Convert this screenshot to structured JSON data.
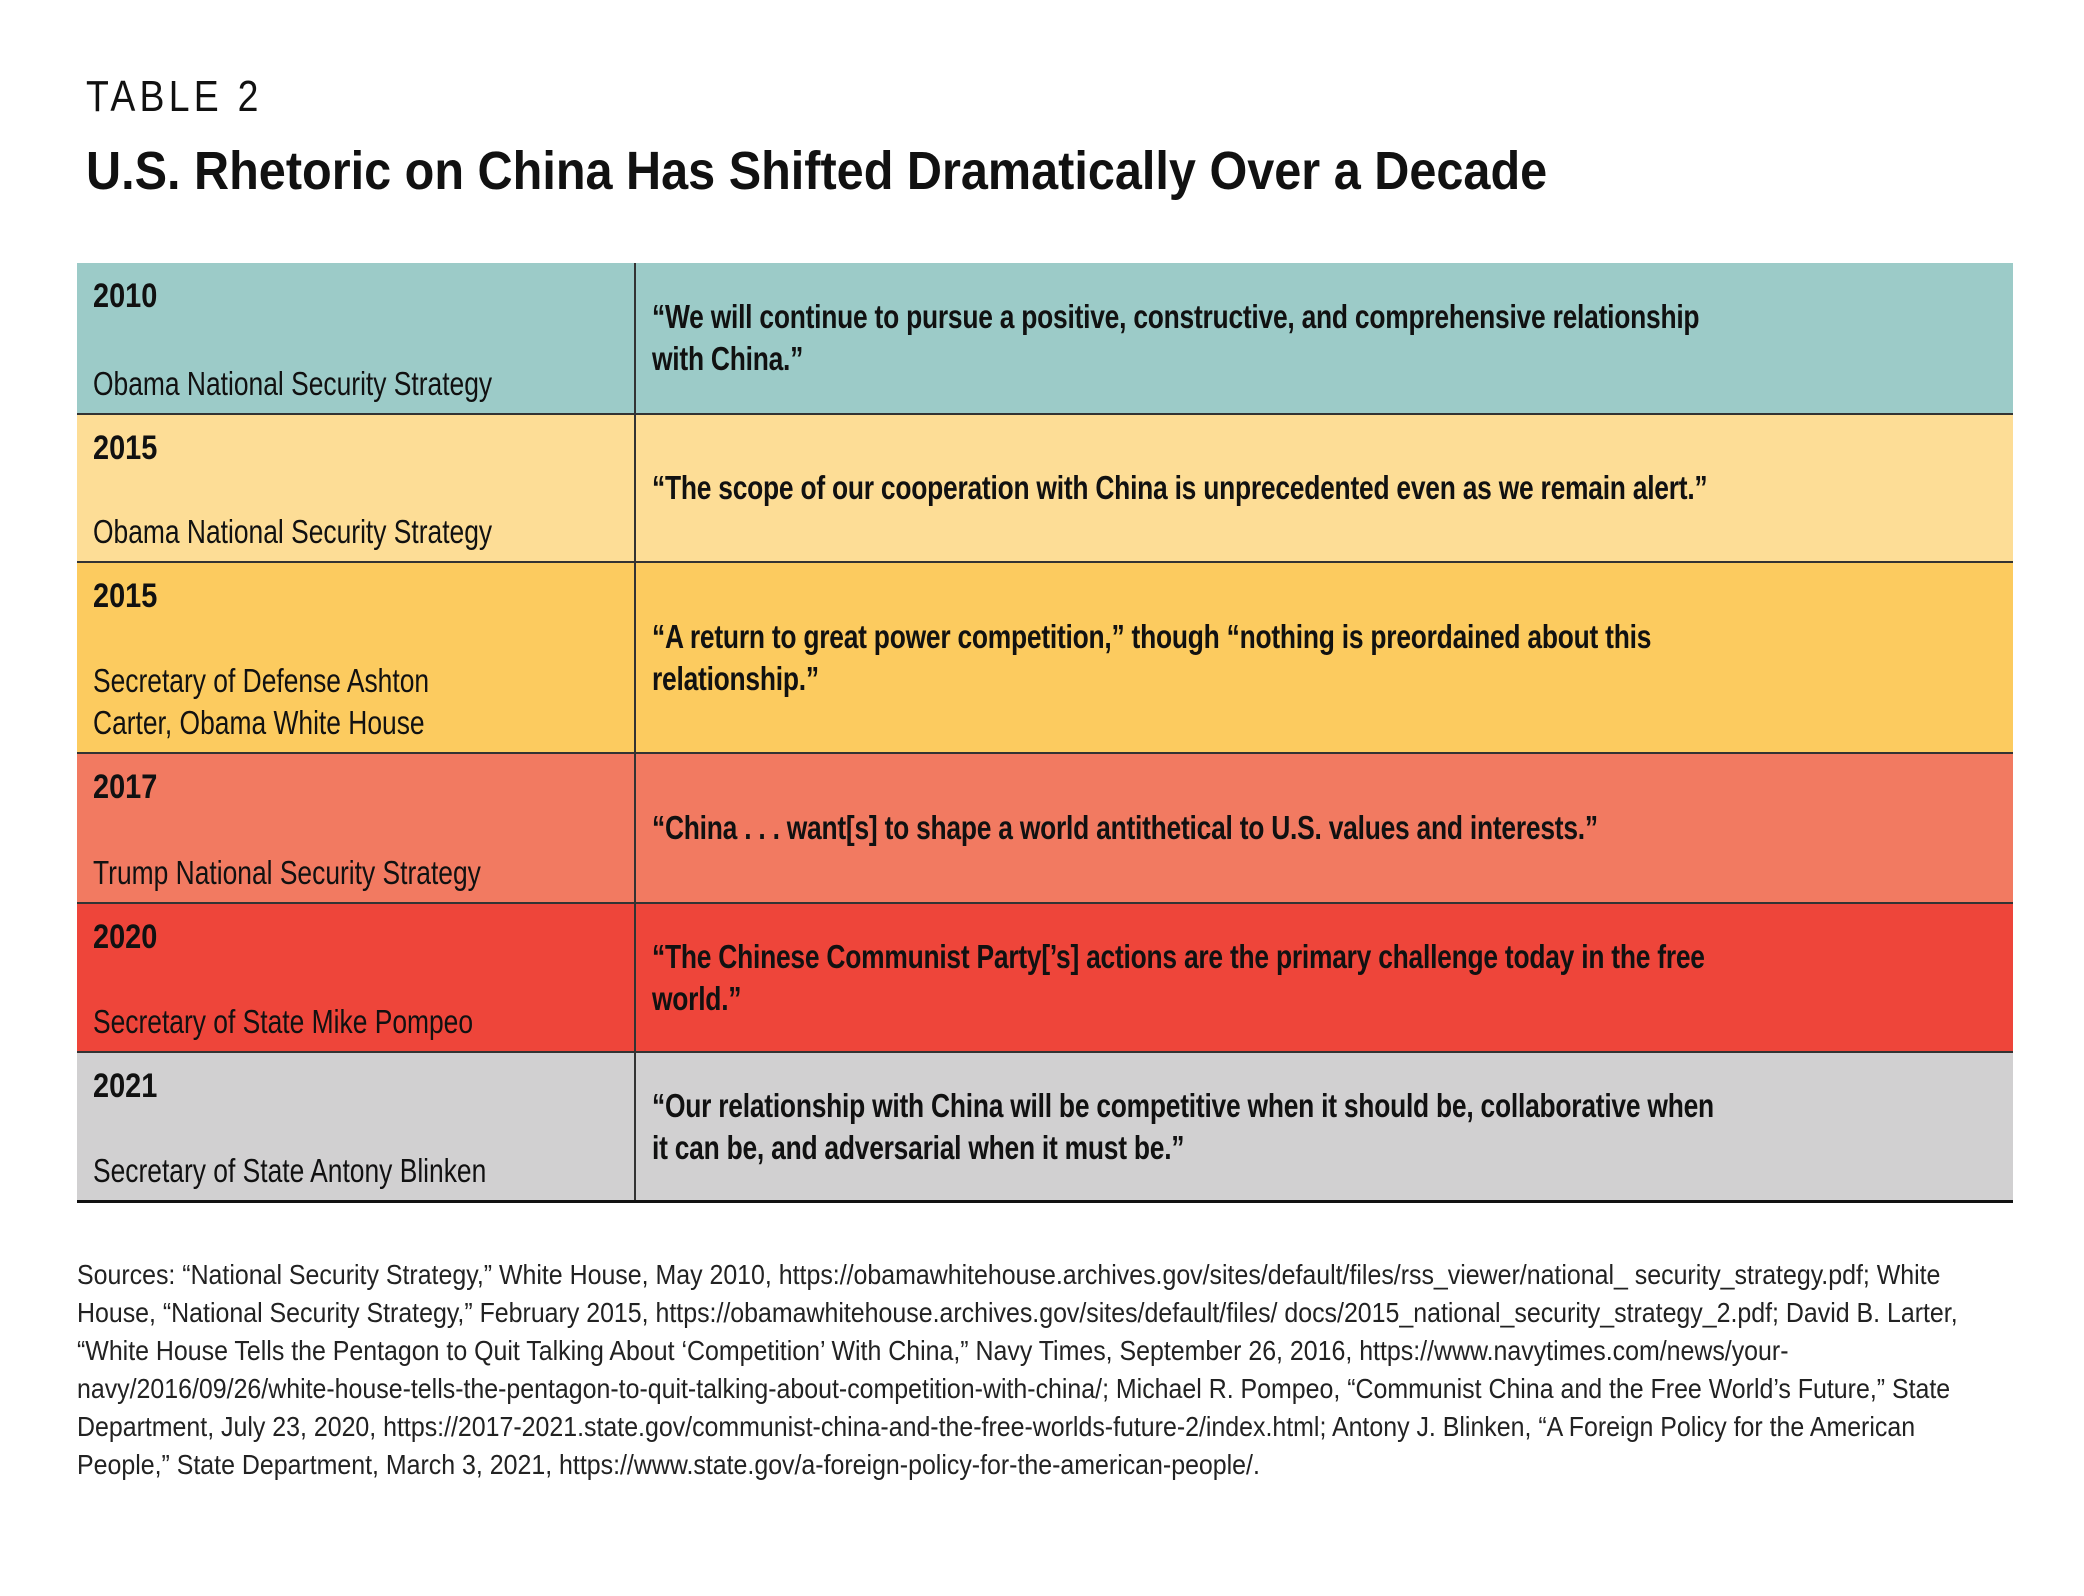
{
  "header": {
    "kicker": "TABLE 2",
    "title": "U.S. Rhetoric on China Has Shifted Dramatically Over a Decade"
  },
  "rows": [
    {
      "year": "2010",
      "source": "Obama National Security Strategy",
      "quote": "“We will continue to pursue a positive, constructive, and comprehensive relationship with China.”",
      "color": "#9ccbc8"
    },
    {
      "year": "2015",
      "source": "Obama National Security Strategy",
      "quote": "“The scope of our cooperation with China is unprecedented even as we remain alert.”",
      "color": "#fddd96"
    },
    {
      "year": "2015",
      "source": "Secretary of Defense Ashton Carter, Obama White House",
      "quote": "“A return to great power competition,” though “nothing is preordained about this relationship.”",
      "color": "#fccb5f"
    },
    {
      "year": "2017",
      "source": "Trump National Security Strategy",
      "quote": "“China . . . want[s] to shape a world antithetical to U.S. values and interests.”",
      "color": "#f27a61"
    },
    {
      "year": "2020",
      "source": "Secretary of State Mike Pompeo",
      "quote": "“The Chinese Communist Party[’s] actions are the primary challenge today in the free world.”",
      "color": "#ee453a"
    },
    {
      "year": "2021",
      "source": "Secretary of State Antony Blinken",
      "quote": "“Our relationship with China will be competitive when it should be, collaborative when it can be, and adversarial when it must be.”",
      "color": "#d1d0d1"
    }
  ],
  "sources_note": "Sources: “National Security Strategy,” White House, May 2010, https://obamawhitehouse.archives.gov/sites/default/files/rss_viewer/national_ security_strategy.pdf; White House, “National Security Strategy,” February 2015, https://obamawhitehouse.archives.gov/sites/default/files/ docs/2015_national_security_strategy_2.pdf; David B. Larter, “White House Tells the Pentagon to Quit Talking About ‘Competition’ With China,” Navy Times, September 26, 2016, https://www.navytimes.com/news/your-navy/2016/09/26/white-house-tells-the-pentagon-to-quit-talking-about-competition-with-china/; Michael R. Pompeo, “Communist China and the Free World’s Future,” State Department, July 23, 2020, https://2017-2021.state.gov/communist-china-and-the-free-worlds-future-2/index.html; Antony J. Blinken, “A Foreign Policy for the American People,” State Department, March 3, 2021, https://www.state.gov/a-foreign-policy-for-the-american-people/."
}
